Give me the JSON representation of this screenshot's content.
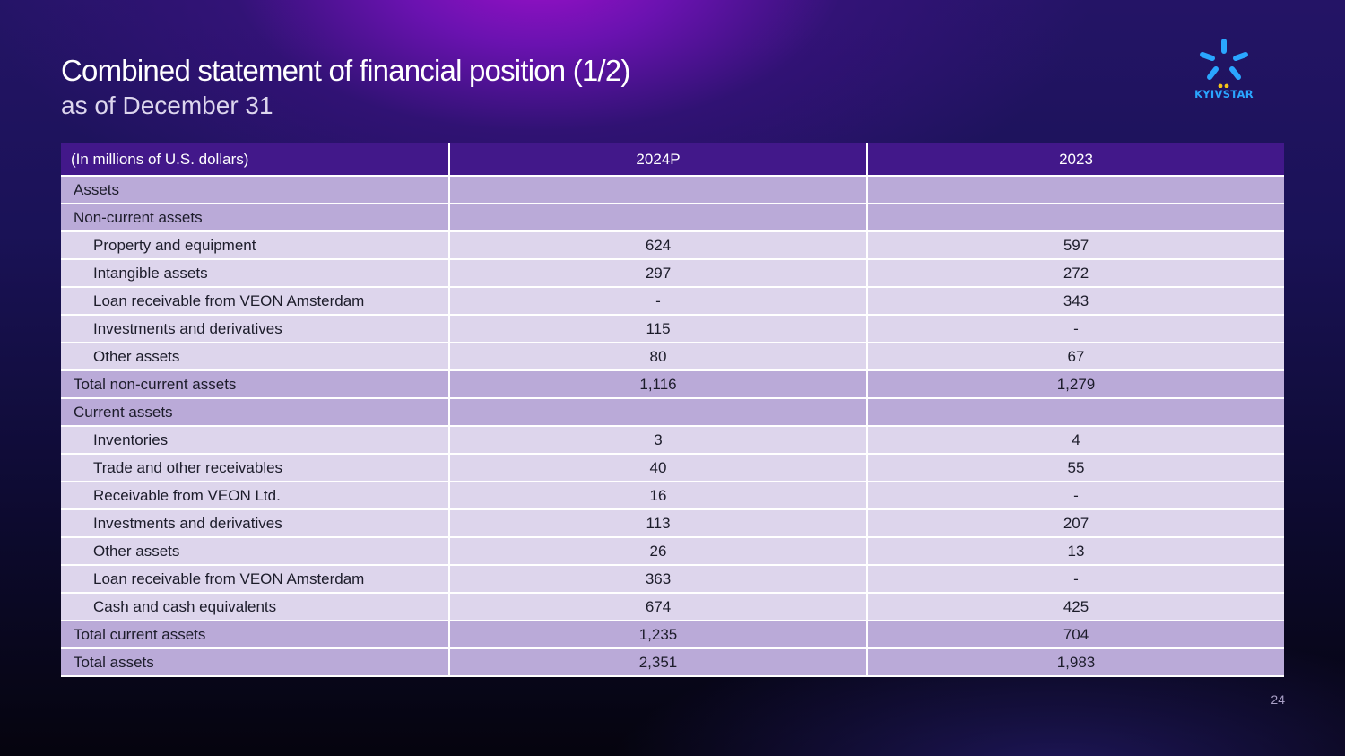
{
  "title": "Combined statement of financial position (1/2)",
  "subtitle": "as of December 31",
  "logo": {
    "text": "KYIVSTAR",
    "icon": "kyivstar-star-logo",
    "color": "#2aa6ff",
    "dots_color": "#f5c518"
  },
  "table": {
    "headers": [
      "(In millions of U.S. dollars)",
      "2024P",
      "2023"
    ],
    "rows": [
      {
        "label": "Assets",
        "v2024": "",
        "v2023": "",
        "style": "section"
      },
      {
        "label": "Non-current assets",
        "v2024": "",
        "v2023": "",
        "style": "section"
      },
      {
        "label": "Property and equipment",
        "v2024": "624",
        "v2023": "597",
        "style": "item"
      },
      {
        "label": "Intangible assets",
        "v2024": "297",
        "v2023": "272",
        "style": "item"
      },
      {
        "label": "Loan receivable from VEON Amsterdam",
        "v2024": "-",
        "v2023": "343",
        "style": "item"
      },
      {
        "label": "Investments and derivatives",
        "v2024": "115",
        "v2023": "-",
        "style": "item"
      },
      {
        "label": "Other assets",
        "v2024": "80",
        "v2023": "67",
        "style": "item"
      },
      {
        "label": "Total non-current assets",
        "v2024": "1,116",
        "v2023": "1,279",
        "style": "section"
      },
      {
        "label": "Current assets",
        "v2024": "",
        "v2023": "",
        "style": "section"
      },
      {
        "label": "Inventories",
        "v2024": "3",
        "v2023": "4",
        "style": "item"
      },
      {
        "label": "Trade and other receivables",
        "v2024": "40",
        "v2023": "55",
        "style": "item"
      },
      {
        "label": "Receivable from VEON Ltd.",
        "v2024": "16",
        "v2023": "-",
        "style": "item"
      },
      {
        "label": "Investments and derivatives",
        "v2024": "113",
        "v2023": "207",
        "style": "item"
      },
      {
        "label": "Other assets",
        "v2024": "26",
        "v2023": "13",
        "style": "item"
      },
      {
        "label": "Loan receivable from VEON Amsterdam",
        "v2024": "363",
        "v2023": "-",
        "style": "item"
      },
      {
        "label": "Cash and cash equivalents",
        "v2024": "674",
        "v2023": "425",
        "style": "item"
      },
      {
        "label": "Total current assets",
        "v2024": "1,235",
        "v2023": "704",
        "style": "section"
      },
      {
        "label": "Total assets",
        "v2024": "2,351",
        "v2023": "1,983",
        "style": "section"
      }
    ]
  },
  "page_number": "24",
  "colors": {
    "header_bg": "#42188a",
    "section_row_bg": "#baaad8",
    "item_row_bg": "#ddd5ec"
  }
}
